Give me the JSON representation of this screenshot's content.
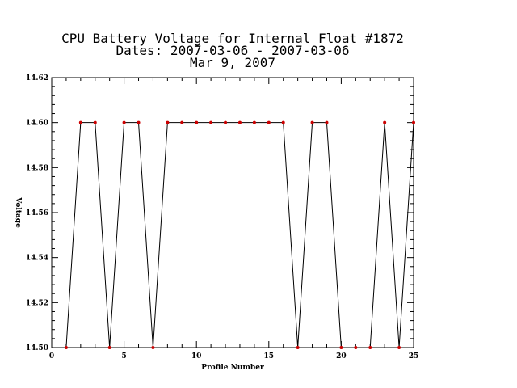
{
  "chart_data": {
    "type": "line",
    "title_lines": [
      "CPU Battery Voltage for Internal Float #1872",
      "Dates:  2007-03-06 -  2007-03-06",
      "Mar  9, 2007"
    ],
    "xlabel": "Profile Number",
    "ylabel": "Voltage",
    "xlim": [
      0,
      25
    ],
    "ylim": [
      14.5,
      14.62
    ],
    "x_major_ticks": [
      0,
      5,
      10,
      15,
      20,
      25
    ],
    "x_tick_labels": [
      "0",
      "5",
      "10",
      "15",
      "20",
      "25"
    ],
    "y_major_ticks": [
      14.5,
      14.52,
      14.54,
      14.56,
      14.58,
      14.6,
      14.62
    ],
    "y_tick_labels": [
      "14.50",
      "14.52",
      "14.54",
      "14.56",
      "14.58",
      "14.60",
      "14.62"
    ],
    "grid": false,
    "line_color": "#000000",
    "marker_color": "#cc0000",
    "series": [
      {
        "x": [
          1,
          2,
          3,
          4,
          5,
          6,
          7,
          8,
          9,
          10,
          11,
          12,
          13,
          14,
          15,
          16,
          17,
          18,
          19,
          20,
          21,
          22,
          23,
          24,
          25
        ],
        "y": [
          14.5,
          14.6,
          14.6,
          14.5,
          14.6,
          14.6,
          14.5,
          14.6,
          14.6,
          14.6,
          14.6,
          14.6,
          14.6,
          14.6,
          14.6,
          14.6,
          14.5,
          14.6,
          14.6,
          14.5,
          14.5,
          14.5,
          14.6,
          14.5,
          14.6
        ]
      }
    ]
  }
}
